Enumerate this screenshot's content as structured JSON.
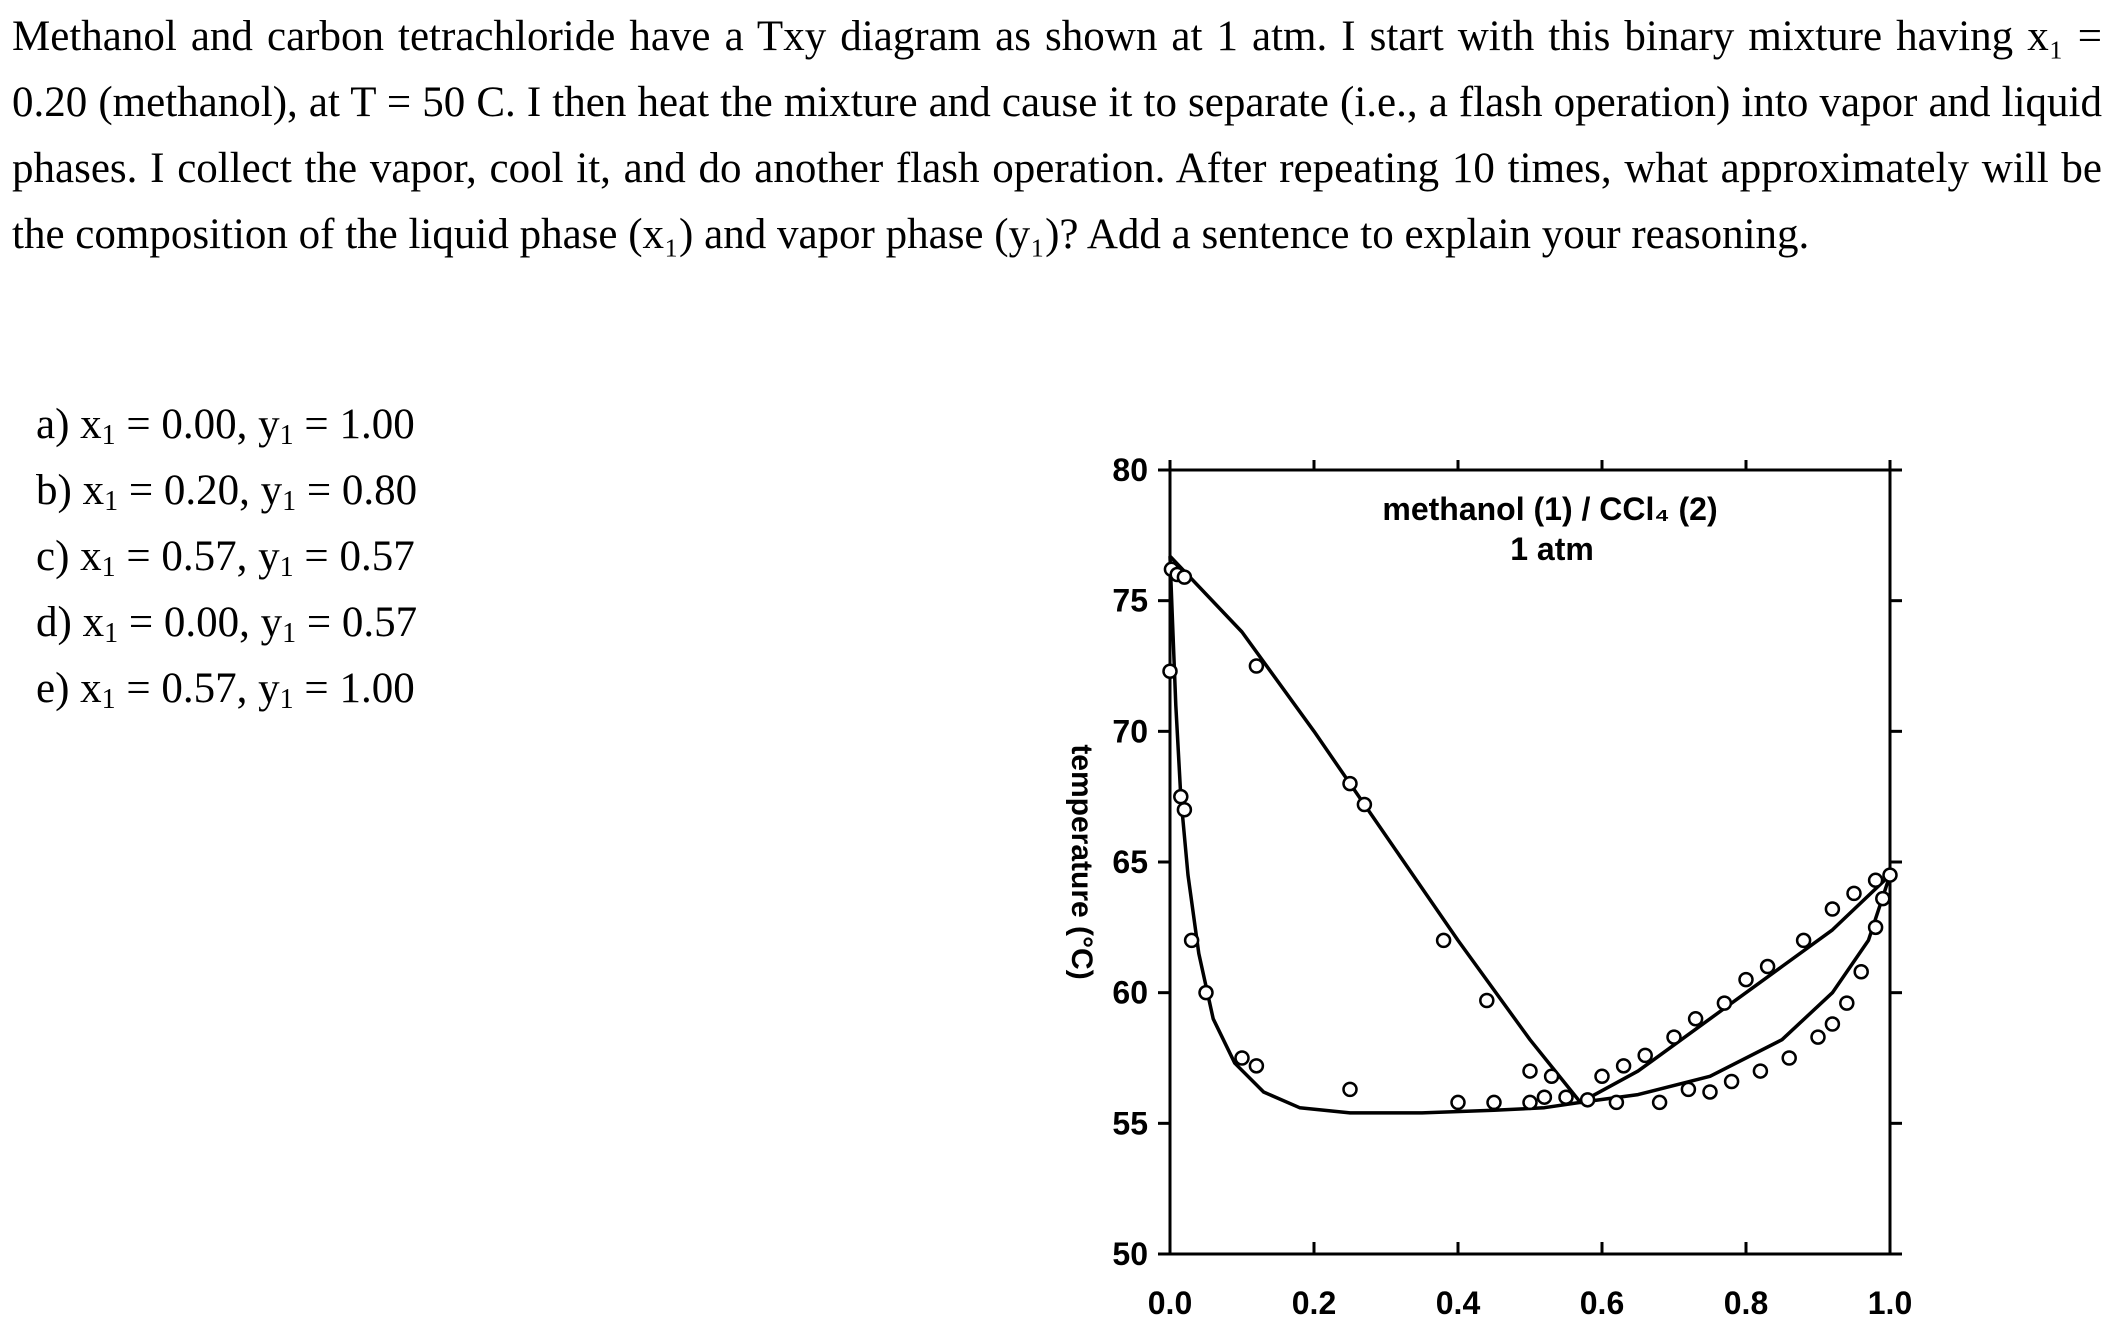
{
  "question": {
    "text": "Methanol and carbon tetrachloride have a Txy diagram as shown at 1 atm. I start with this binary mixture having x₁ = 0.20 (methanol), at T = 50 C. I then heat the mixture and cause it to separate (i.e., a flash operation) into vapor and liquid phases. I collect the vapor, cool it, and do another flash operation. After repeating 10 times, what approximately will be the composition of the liquid phase (x₁) and vapor phase (y₁)? Add a sentence to explain your reasoning."
  },
  "options": [
    {
      "letter": "a)",
      "x1": "0.00",
      "y1": "1.00"
    },
    {
      "letter": "b)",
      "x1": "0.20",
      "y1": "0.80"
    },
    {
      "letter": "c)",
      "x1": "0.57",
      "y1": "0.57"
    },
    {
      "letter": "d)",
      "x1": "0.00",
      "y1": "0.57"
    },
    {
      "letter": "e)",
      "x1": "0.57",
      "y1": "1.00"
    }
  ],
  "chart_data": {
    "type": "line",
    "title": "methanol (1) / CCl₄ (2)",
    "subtitle": "1 atm",
    "xlabel": "",
    "ylabel": "temperature (°C)",
    "xlim": [
      0.0,
      1.0
    ],
    "ylim": [
      50,
      80
    ],
    "xticks": [
      "0.0",
      "0.2",
      "0.4",
      "0.6",
      "0.8",
      "1.0"
    ],
    "yticks": [
      "50",
      "55",
      "60",
      "65",
      "70",
      "75",
      "80"
    ],
    "grid": false,
    "legend": "none",
    "series": [
      {
        "curve": "bubble",
        "x": [
          0.0,
          0.003,
          0.008,
          0.015,
          0.025,
          0.04,
          0.06,
          0.09,
          0.13,
          0.18,
          0.25,
          0.35,
          0.45,
          0.52,
          0.57,
          0.65,
          0.75,
          0.85,
          0.92,
          0.97,
          1.0
        ],
        "y": [
          76.7,
          74.5,
          71.0,
          67.5,
          64.5,
          61.5,
          59.0,
          57.3,
          56.2,
          55.6,
          55.4,
          55.4,
          55.5,
          55.6,
          55.8,
          56.1,
          56.8,
          58.2,
          60.0,
          62.0,
          64.5
        ]
      },
      {
        "curve": "dew",
        "x": [
          0.0,
          0.1,
          0.2,
          0.3,
          0.4,
          0.5,
          0.57,
          0.65,
          0.75,
          0.85,
          0.92,
          1.0
        ],
        "y": [
          76.7,
          73.8,
          70.0,
          66.0,
          62.0,
          58.2,
          55.8,
          57.0,
          59.0,
          61.0,
          62.4,
          64.5
        ]
      }
    ],
    "points": [
      [
        0.0,
        72.3
      ],
      [
        0.002,
        76.2
      ],
      [
        0.01,
        76.0
      ],
      [
        0.02,
        75.9
      ],
      [
        0.015,
        67.5
      ],
      [
        0.02,
        67.0
      ],
      [
        0.03,
        62.0
      ],
      [
        0.05,
        60.0
      ],
      [
        0.1,
        57.5
      ],
      [
        0.12,
        57.2
      ],
      [
        0.25,
        56.3
      ],
      [
        0.4,
        55.8
      ],
      [
        0.45,
        55.8
      ],
      [
        0.5,
        55.8
      ],
      [
        0.52,
        56.0
      ],
      [
        0.55,
        56.0
      ],
      [
        0.58,
        55.9
      ],
      [
        0.62,
        55.8
      ],
      [
        0.68,
        55.8
      ],
      [
        0.72,
        56.3
      ],
      [
        0.75,
        56.2
      ],
      [
        0.78,
        56.6
      ],
      [
        0.82,
        57.0
      ],
      [
        0.86,
        57.5
      ],
      [
        0.9,
        58.3
      ],
      [
        0.92,
        58.8
      ],
      [
        0.94,
        59.6
      ],
      [
        0.96,
        60.8
      ],
      [
        0.98,
        62.5
      ],
      [
        0.99,
        63.6
      ],
      [
        0.12,
        72.5
      ],
      [
        0.25,
        68.0
      ],
      [
        0.27,
        67.2
      ],
      [
        0.38,
        62.0
      ],
      [
        0.44,
        59.7
      ],
      [
        0.5,
        57.0
      ],
      [
        0.53,
        56.8
      ],
      [
        0.6,
        56.8
      ],
      [
        0.63,
        57.2
      ],
      [
        0.66,
        57.6
      ],
      [
        0.7,
        58.3
      ],
      [
        0.73,
        59.0
      ],
      [
        0.77,
        59.6
      ],
      [
        0.8,
        60.5
      ],
      [
        0.83,
        61.0
      ],
      [
        0.88,
        62.0
      ],
      [
        0.92,
        63.2
      ],
      [
        0.95,
        63.8
      ],
      [
        0.98,
        64.3
      ],
      [
        1.0,
        64.5
      ]
    ]
  }
}
